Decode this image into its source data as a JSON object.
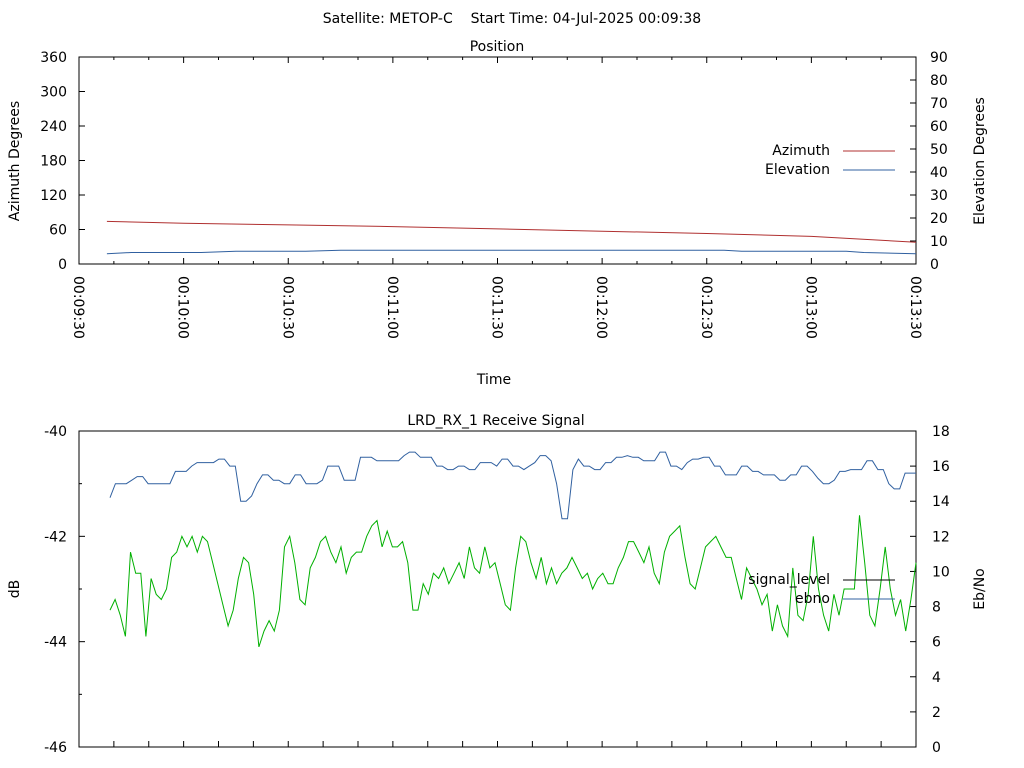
{
  "page_title": "Satellite: METOP-C    Start Time: 04-Jul-2025 00:09:38",
  "chart_data": [
    {
      "type": "line",
      "title": "Position",
      "xlabel": "Time",
      "ylabel": "Azimuth Degrees",
      "y2label": "Elevation Degrees",
      "x_ticks": [
        "00:09:30",
        "00:10:00",
        "00:10:30",
        "00:11:00",
        "00:11:30",
        "00:12:00",
        "00:12:30",
        "00:13:00",
        "00:13:30"
      ],
      "xlim_seconds_from_first_tick": [
        0,
        240
      ],
      "ylim": [
        0,
        360
      ],
      "y_ticks": [
        0,
        60,
        120,
        180,
        240,
        300,
        360
      ],
      "y2lim": [
        0,
        90
      ],
      "y2_ticks": [
        0,
        10,
        20,
        30,
        40,
        50,
        60,
        70,
        80,
        90
      ],
      "grid": false,
      "legend_position": "right",
      "series": [
        {
          "name": "Azimuth",
          "axis": "left",
          "color": "#b03030",
          "points": [
            [
              8,
              74
            ],
            [
              30,
              71
            ],
            [
              60,
              68
            ],
            [
              90,
              65
            ],
            [
              120,
              61
            ],
            [
              150,
              57
            ],
            [
              180,
              53
            ],
            [
              210,
              48
            ],
            [
              240,
              38
            ]
          ]
        },
        {
          "name": "Elevation",
          "axis": "right",
          "color": "#3060a0",
          "points": [
            [
              8,
              4.5
            ],
            [
              15,
              5
            ],
            [
              35,
              5
            ],
            [
              45,
              5.5
            ],
            [
              65,
              5.5
            ],
            [
              75,
              6
            ],
            [
              150,
              6
            ],
            [
              185,
              6
            ],
            [
              190,
              5.5
            ],
            [
              220,
              5.5
            ],
            [
              225,
              5
            ],
            [
              240,
              4.5
            ]
          ]
        }
      ]
    },
    {
      "type": "line",
      "title": "LRD_RX_1 Receive Signal",
      "ylabel": "dB",
      "y2label": "Eb/No",
      "ylim": [
        -46,
        -40
      ],
      "y_ticks": [
        -46,
        -44,
        -42,
        -40
      ],
      "y2lim": [
        0,
        18
      ],
      "y2_ticks": [
        0,
        2,
        4,
        6,
        8,
        10,
        12,
        14,
        16,
        18
      ],
      "grid": false,
      "legend_position": "right",
      "series": [
        {
          "name": "signal_level",
          "axis": "left",
          "color": "#000000",
          "legend_only": true
        },
        {
          "name": "ebno",
          "axis": "right",
          "color": "#3060a0",
          "values": [
            14.2,
            15.0,
            15.0,
            15.0,
            15.2,
            15.4,
            15.4,
            15.0,
            15.0,
            15.0,
            15.0,
            15.0,
            15.7,
            15.7,
            15.7,
            16.0,
            16.2,
            16.2,
            16.2,
            16.2,
            16.4,
            16.4,
            16.0,
            16.0,
            14.0,
            14.0,
            14.3,
            15.0,
            15.5,
            15.5,
            15.2,
            15.2,
            15.0,
            15.0,
            15.5,
            15.5,
            15.0,
            15.0,
            15.0,
            15.2,
            16.0,
            16.0,
            16.0,
            15.2,
            15.2,
            15.2,
            16.5,
            16.5,
            16.5,
            16.3,
            16.3,
            16.3,
            16.3,
            16.3,
            16.6,
            16.8,
            16.8,
            16.5,
            16.5,
            16.5,
            16.0,
            16.0,
            15.8,
            15.8,
            16.0,
            16.0,
            15.8,
            15.8,
            16.2,
            16.2,
            16.2,
            16.0,
            16.4,
            16.4,
            16.0,
            16.0,
            15.8,
            16.0,
            16.2,
            16.6,
            16.6,
            16.3,
            15.0,
            13.0,
            13.0,
            15.8,
            16.4,
            16.0,
            16.0,
            15.8,
            15.8,
            16.2,
            16.2,
            16.5,
            16.5,
            16.6,
            16.5,
            16.5,
            16.3,
            16.3,
            16.3,
            16.8,
            16.8,
            16.0,
            16.0,
            15.8,
            16.2,
            16.4,
            16.4,
            16.5,
            16.5,
            16.0,
            16.0,
            15.5,
            15.5,
            15.5,
            16.0,
            16.0,
            15.7,
            15.7,
            15.5,
            15.5,
            15.5,
            15.2,
            15.2,
            15.5,
            15.5,
            16.0,
            16.0,
            15.7,
            15.3,
            15.0,
            15.0,
            15.2,
            15.7,
            15.7,
            15.8,
            15.8,
            15.8,
            16.3,
            16.3,
            15.8,
            15.8,
            15.0,
            14.7,
            14.7,
            15.6,
            15.6,
            15.6
          ]
        },
        {
          "name": "",
          "axis": "left",
          "color": "#00b000",
          "values": [
            -43.4,
            -43.2,
            -43.5,
            -43.9,
            -42.3,
            -42.7,
            -42.7,
            -43.9,
            -42.8,
            -43.1,
            -43.2,
            -43.0,
            -42.4,
            -42.3,
            -42.0,
            -42.2,
            -42.0,
            -42.3,
            -42.0,
            -42.1,
            -42.5,
            -42.9,
            -43.3,
            -43.7,
            -43.4,
            -42.8,
            -42.4,
            -42.5,
            -43.1,
            -44.1,
            -43.8,
            -43.6,
            -43.8,
            -43.4,
            -42.2,
            -42.0,
            -42.5,
            -43.2,
            -43.3,
            -42.6,
            -42.4,
            -42.1,
            -42.0,
            -42.3,
            -42.5,
            -42.2,
            -42.7,
            -42.4,
            -42.3,
            -42.3,
            -42.0,
            -41.8,
            -41.7,
            -42.2,
            -41.9,
            -42.2,
            -42.2,
            -42.1,
            -42.5,
            -43.4,
            -43.4,
            -42.9,
            -43.1,
            -42.7,
            -42.8,
            -42.6,
            -42.9,
            -42.7,
            -42.5,
            -42.8,
            -42.2,
            -42.6,
            -42.7,
            -42.2,
            -42.6,
            -42.5,
            -42.9,
            -43.3,
            -43.4,
            -42.6,
            -42.0,
            -42.1,
            -42.5,
            -42.8,
            -42.4,
            -42.9,
            -42.6,
            -42.9,
            -42.7,
            -42.6,
            -42.4,
            -42.6,
            -42.8,
            -42.7,
            -43.0,
            -42.8,
            -42.7,
            -42.9,
            -42.9,
            -42.6,
            -42.4,
            -42.1,
            -42.1,
            -42.3,
            -42.5,
            -42.2,
            -42.7,
            -42.9,
            -42.3,
            -42.0,
            -41.9,
            -41.8,
            -42.4,
            -42.9,
            -43.0,
            -42.6,
            -42.2,
            -42.1,
            -42.0,
            -42.2,
            -42.4,
            -42.4,
            -42.8,
            -43.2,
            -42.6,
            -42.8,
            -43.0,
            -43.3,
            -43.1,
            -43.8,
            -43.3,
            -43.7,
            -43.9,
            -42.6,
            -43.5,
            -43.6,
            -43.1,
            -42.0,
            -43.0,
            -43.5,
            -43.8,
            -43.1,
            -43.5,
            -43.0,
            -43.0,
            -43.0,
            -41.6,
            -42.5,
            -43.5,
            -43.7,
            -43.0,
            -42.2,
            -43.0,
            -43.5,
            -43.2,
            -43.8,
            -43.2,
            -42.5
          ]
        }
      ]
    }
  ]
}
